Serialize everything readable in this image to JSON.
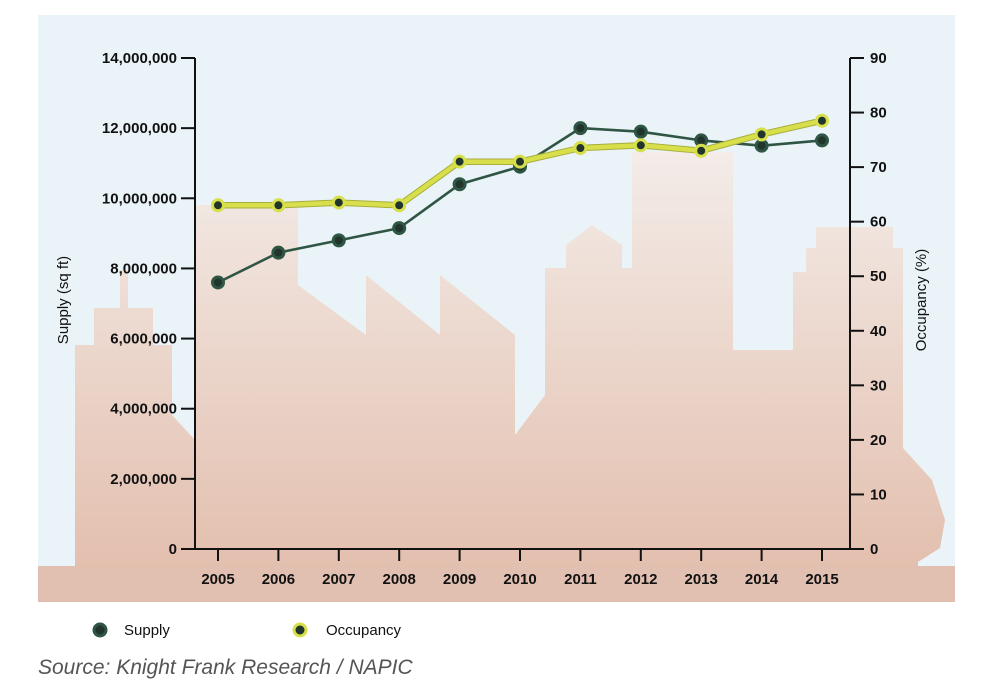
{
  "chart_data": {
    "type": "line",
    "categories": [
      "2005",
      "2006",
      "2007",
      "2008",
      "2009",
      "2010",
      "2011",
      "2012",
      "2013",
      "2014",
      "2015"
    ],
    "series": [
      {
        "name": "Supply",
        "axis": "left",
        "values": [
          7600000,
          8450000,
          8800000,
          9150000,
          10400000,
          10900000,
          12000000,
          11900000,
          11650000,
          11500000,
          11650000
        ]
      },
      {
        "name": "Occupancy",
        "axis": "right",
        "values": [
          63,
          63,
          63.5,
          63,
          71,
          71,
          73.5,
          74,
          73,
          76,
          78.5
        ]
      }
    ],
    "ylabel": "Supply (sq ft)",
    "y2label": "Occupancy (%)",
    "ylim": [
      0,
      14000000
    ],
    "y2lim": [
      0,
      90
    ],
    "yticks": [
      "0",
      "2,000,000",
      "4,000,000",
      "6,000,000",
      "8,000,000",
      "10,000,000",
      "12,000,000",
      "14,000,000"
    ],
    "y2ticks": [
      "0",
      "10",
      "20",
      "30",
      "40",
      "50",
      "60",
      "70",
      "80",
      "90"
    ],
    "grid": false,
    "legend": "bottom-left"
  },
  "colors": {
    "supply_line": "#2f5544",
    "occupancy_line": "#d7df4a",
    "plot_background": "#eaf4f8",
    "skyline": "#e7c7b7"
  },
  "source": "Source: Knight Frank Research / NAPIC"
}
